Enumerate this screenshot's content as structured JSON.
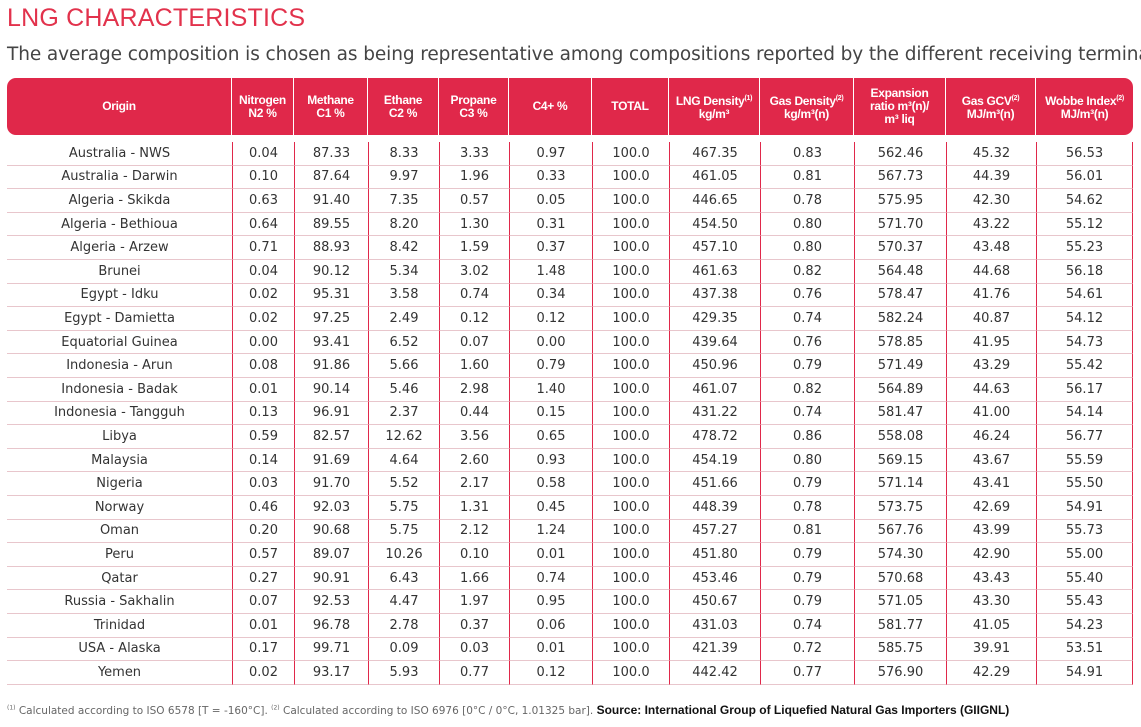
{
  "title": "LNG CHARACTERISTICS",
  "subtitle": "The average composition is chosen as being representative among compositions reported by the different receiving terminals.",
  "headers": [
    {
      "line1": "Origin",
      "line2": "",
      "line3": ""
    },
    {
      "line1": "Nitrogen",
      "line2": "N2 %",
      "line3": ""
    },
    {
      "line1": "Methane",
      "line2": "C1 %",
      "line3": ""
    },
    {
      "line1": "Ethane",
      "line2": "C2 %",
      "line3": ""
    },
    {
      "line1": "Propane",
      "line2": "C3 %",
      "line3": ""
    },
    {
      "line1": "C4+ %",
      "line2": "",
      "line3": ""
    },
    {
      "line1": "TOTAL",
      "line2": "",
      "line3": ""
    },
    {
      "line1": "LNG Density",
      "sup": "(1)",
      "line2": "kg/m³",
      "line3": ""
    },
    {
      "line1": "Gas Density",
      "sup": "(2)",
      "line2": "kg/m³(n)",
      "line3": ""
    },
    {
      "line1": "Expansion",
      "line2": "ratio m³(n)/",
      "line3": "m³ liq"
    },
    {
      "line1": "Gas GCV",
      "sup": "(2)",
      "line2": "MJ/m³(n)",
      "line3": ""
    },
    {
      "line1": "Wobbe Index",
      "sup": "(2)",
      "line2": "MJ/m³(n)",
      "line3": ""
    }
  ],
  "rows": [
    [
      "Australia - NWS",
      "0.04",
      "87.33",
      "8.33",
      "3.33",
      "0.97",
      "100.0",
      "467.35",
      "0.83",
      "562.46",
      "45.32",
      "56.53"
    ],
    [
      "Australia - Darwin",
      "0.10",
      "87.64",
      "9.97",
      "1.96",
      "0.33",
      "100.0",
      "461.05",
      "0.81",
      "567.73",
      "44.39",
      "56.01"
    ],
    [
      "Algeria - Skikda",
      "0.63",
      "91.40",
      "7.35",
      "0.57",
      "0.05",
      "100.0",
      "446.65",
      "0.78",
      "575.95",
      "42.30",
      "54.62"
    ],
    [
      "Algeria - Bethioua",
      "0.64",
      "89.55",
      "8.20",
      "1.30",
      "0.31",
      "100.0",
      "454.50",
      "0.80",
      "571.70",
      "43.22",
      "55.12"
    ],
    [
      "Algeria - Arzew",
      "0.71",
      "88.93",
      "8.42",
      "1.59",
      "0.37",
      "100.0",
      "457.10",
      "0.80",
      "570.37",
      "43.48",
      "55.23"
    ],
    [
      "Brunei",
      "0.04",
      "90.12",
      "5.34",
      "3.02",
      "1.48",
      "100.0",
      "461.63",
      "0.82",
      "564.48",
      "44.68",
      "56.18"
    ],
    [
      "Egypt - Idku",
      "0.02",
      "95.31",
      "3.58",
      "0.74",
      "0.34",
      "100.0",
      "437.38",
      "0.76",
      "578.47",
      "41.76",
      "54.61"
    ],
    [
      "Egypt - Damietta",
      "0.02",
      "97.25",
      "2.49",
      "0.12",
      "0.12",
      "100.0",
      "429.35",
      "0.74",
      "582.24",
      "40.87",
      "54.12"
    ],
    [
      "Equatorial Guinea",
      "0.00",
      "93.41",
      "6.52",
      "0.07",
      "0.00",
      "100.0",
      "439.64",
      "0.76",
      "578.85",
      "41.95",
      "54.73"
    ],
    [
      "Indonesia - Arun",
      "0.08",
      "91.86",
      "5.66",
      "1.60",
      "0.79",
      "100.0",
      "450.96",
      "0.79",
      "571.49",
      "43.29",
      "55.42"
    ],
    [
      "Indonesia - Badak",
      "0.01",
      "90.14",
      "5.46",
      "2.98",
      "1.40",
      "100.0",
      "461.07",
      "0.82",
      "564.89",
      "44.63",
      "56.17"
    ],
    [
      "Indonesia - Tangguh",
      "0.13",
      "96.91",
      "2.37",
      "0.44",
      "0.15",
      "100.0",
      "431.22",
      "0.74",
      "581.47",
      "41.00",
      "54.14"
    ],
    [
      "Libya",
      "0.59",
      "82.57",
      "12.62",
      "3.56",
      "0.65",
      "100.0",
      "478.72",
      "0.86",
      "558.08",
      "46.24",
      "56.77"
    ],
    [
      "Malaysia",
      "0.14",
      "91.69",
      "4.64",
      "2.60",
      "0.93",
      "100.0",
      "454.19",
      "0.80",
      "569.15",
      "43.67",
      "55.59"
    ],
    [
      "Nigeria",
      "0.03",
      "91.70",
      "5.52",
      "2.17",
      "0.58",
      "100.0",
      "451.66",
      "0.79",
      "571.14",
      "43.41",
      "55.50"
    ],
    [
      "Norway",
      "0.46",
      "92.03",
      "5.75",
      "1.31",
      "0.45",
      "100.0",
      "448.39",
      "0.78",
      "573.75",
      "42.69",
      "54.91"
    ],
    [
      "Oman",
      "0.20",
      "90.68",
      "5.75",
      "2.12",
      "1.24",
      "100.0",
      "457.27",
      "0.81",
      "567.76",
      "43.99",
      "55.73"
    ],
    [
      "Peru",
      "0.57",
      "89.07",
      "10.26",
      "0.10",
      "0.01",
      "100.0",
      "451.80",
      "0.79",
      "574.30",
      "42.90",
      "55.00"
    ],
    [
      "Qatar",
      "0.27",
      "90.91",
      "6.43",
      "1.66",
      "0.74",
      "100.0",
      "453.46",
      "0.79",
      "570.68",
      "43.43",
      "55.40"
    ],
    [
      "Russia - Sakhalin",
      "0.07",
      "92.53",
      "4.47",
      "1.97",
      "0.95",
      "100.0",
      "450.67",
      "0.79",
      "571.05",
      "43.30",
      "55.43"
    ],
    [
      "Trinidad",
      "0.01",
      "96.78",
      "2.78",
      "0.37",
      "0.06",
      "100.0",
      "431.03",
      "0.74",
      "581.77",
      "41.05",
      "54.23"
    ],
    [
      "USA - Alaska",
      "0.17",
      "99.71",
      "0.09",
      "0.03",
      "0.01",
      "100.0",
      "421.39",
      "0.72",
      "585.75",
      "39.91",
      "53.51"
    ],
    [
      "Yemen",
      "0.02",
      "93.17",
      "5.93",
      "0.77",
      "0.12",
      "100.0",
      "442.42",
      "0.77",
      "576.90",
      "42.29",
      "54.91"
    ]
  ],
  "footnote": {
    "sup1": "(1)",
    "note1": "Calculated according to ISO 6578 [T = -160°C].",
    "sup2": "(2)",
    "note2": "Calculated according to ISO 6976 [0°C / 0°C, 1.01325 bar].",
    "source": "Source: International Group of Liquefied Natural Gas Importers (GIIGNL)"
  },
  "colors": {
    "accent": "#e0284a",
    "title": "#e2324c"
  }
}
